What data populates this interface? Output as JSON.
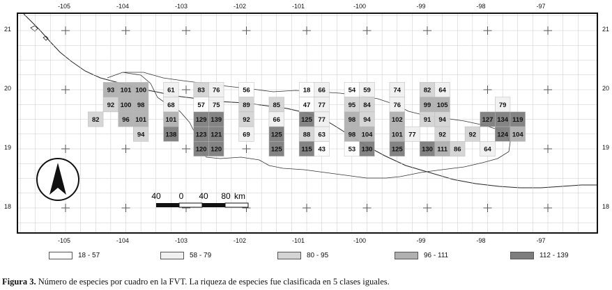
{
  "longitude_labels": [
    "-105",
    "-104",
    "-103",
    "-102",
    "-101",
    "-100",
    "-99",
    "-98",
    "-97"
  ],
  "latitude_labels": [
    "21",
    "20",
    "19",
    "18"
  ],
  "scale_bar": {
    "labels": [
      "40",
      "0",
      "40",
      "80"
    ],
    "unit": "km"
  },
  "north_arrow_icon": "north-arrow-icon",
  "class_colors": [
    "#ffffff",
    "#f0f0f0",
    "#d4d4d4",
    "#b0b0b0",
    "#7d7d7d"
  ],
  "legend": [
    {
      "label": "18 - 57",
      "color": "#ffffff"
    },
    {
      "label": "58 - 79",
      "color": "#f0f0f0"
    },
    {
      "label": "80 - 95",
      "color": "#d4d4d4"
    },
    {
      "label": "96 - 111",
      "color": "#b0b0b0"
    },
    {
      "label": "112 - 139",
      "color": "#7d7d7d"
    }
  ],
  "caption": {
    "label": "Figura 3.",
    "text": " Número de especies por cuadro en la FVT. La riqueza de especies fue clasificada en 5 clases iguales."
  },
  "cells": [
    {
      "lon": -104.25,
      "lat": 20.0,
      "value": 93,
      "cls": 3
    },
    {
      "lon": -104.0,
      "lat": 20.0,
      "value": 101,
      "cls": 3
    },
    {
      "lon": -103.75,
      "lat": 20.0,
      "value": 100,
      "cls": 3
    },
    {
      "lon": -103.25,
      "lat": 20.0,
      "value": 61,
      "cls": 1
    },
    {
      "lon": -102.75,
      "lat": 20.0,
      "value": 83,
      "cls": 2
    },
    {
      "lon": -102.5,
      "lat": 20.0,
      "value": 76,
      "cls": 1
    },
    {
      "lon": -102.0,
      "lat": 20.0,
      "value": 56,
      "cls": 0
    },
    {
      "lon": -101.0,
      "lat": 20.0,
      "value": 18,
      "cls": 0
    },
    {
      "lon": -100.75,
      "lat": 20.0,
      "value": 66,
      "cls": 1
    },
    {
      "lon": -100.25,
      "lat": 20.0,
      "value": 54,
      "cls": 0
    },
    {
      "lon": -100.0,
      "lat": 20.0,
      "value": 59,
      "cls": 1
    },
    {
      "lon": -99.5,
      "lat": 20.0,
      "value": 74,
      "cls": 1
    },
    {
      "lon": -99.0,
      "lat": 20.0,
      "value": 82,
      "cls": 2
    },
    {
      "lon": -98.75,
      "lat": 20.0,
      "value": 64,
      "cls": 1
    },
    {
      "lon": -104.25,
      "lat": 19.75,
      "value": 92,
      "cls": 2
    },
    {
      "lon": -104.0,
      "lat": 19.75,
      "value": 100,
      "cls": 3
    },
    {
      "lon": -103.75,
      "lat": 19.75,
      "value": 98,
      "cls": 3
    },
    {
      "lon": -103.25,
      "lat": 19.75,
      "value": 68,
      "cls": 1
    },
    {
      "lon": -102.75,
      "lat": 19.75,
      "value": 57,
      "cls": 0
    },
    {
      "lon": -102.5,
      "lat": 19.75,
      "value": 75,
      "cls": 1
    },
    {
      "lon": -102.0,
      "lat": 19.75,
      "value": 89,
      "cls": 2
    },
    {
      "lon": -101.5,
      "lat": 19.75,
      "value": 85,
      "cls": 2
    },
    {
      "lon": -101.0,
      "lat": 19.75,
      "value": 47,
      "cls": 0
    },
    {
      "lon": -100.75,
      "lat": 19.75,
      "value": 77,
      "cls": 1
    },
    {
      "lon": -100.25,
      "lat": 19.75,
      "value": 95,
      "cls": 2
    },
    {
      "lon": -100.0,
      "lat": 19.75,
      "value": 84,
      "cls": 2
    },
    {
      "lon": -99.5,
      "lat": 19.75,
      "value": 76,
      "cls": 1
    },
    {
      "lon": -99.0,
      "lat": 19.75,
      "value": 99,
      "cls": 3
    },
    {
      "lon": -98.75,
      "lat": 19.75,
      "value": 105,
      "cls": 3
    },
    {
      "lon": -97.75,
      "lat": 19.75,
      "value": 79,
      "cls": 1
    },
    {
      "lon": -104.5,
      "lat": 19.5,
      "value": 82,
      "cls": 2
    },
    {
      "lon": -104.0,
      "lat": 19.5,
      "value": 96,
      "cls": 3
    },
    {
      "lon": -103.75,
      "lat": 19.5,
      "value": 101,
      "cls": 3
    },
    {
      "lon": -103.25,
      "lat": 19.5,
      "value": 101,
      "cls": 3
    },
    {
      "lon": -102.75,
      "lat": 19.5,
      "value": 129,
      "cls": 4
    },
    {
      "lon": -102.5,
      "lat": 19.5,
      "value": 139,
      "cls": 4
    },
    {
      "lon": -102.0,
      "lat": 19.5,
      "value": 92,
      "cls": 2
    },
    {
      "lon": -101.5,
      "lat": 19.5,
      "value": 66,
      "cls": 1
    },
    {
      "lon": -101.0,
      "lat": 19.5,
      "value": 125,
      "cls": 4
    },
    {
      "lon": -100.75,
      "lat": 19.5,
      "value": 77,
      "cls": 1
    },
    {
      "lon": -100.25,
      "lat": 19.5,
      "value": 98,
      "cls": 3
    },
    {
      "lon": -100.0,
      "lat": 19.5,
      "value": 94,
      "cls": 2
    },
    {
      "lon": -99.5,
      "lat": 19.5,
      "value": 102,
      "cls": 3
    },
    {
      "lon": -99.0,
      "lat": 19.5,
      "value": 91,
      "cls": 2
    },
    {
      "lon": -98.75,
      "lat": 19.5,
      "value": 94,
      "cls": 2
    },
    {
      "lon": -98.0,
      "lat": 19.5,
      "value": 127,
      "cls": 4
    },
    {
      "lon": -97.75,
      "lat": 19.5,
      "value": 134,
      "cls": 4
    },
    {
      "lon": -97.5,
      "lat": 19.5,
      "value": 119,
      "cls": 4
    },
    {
      "lon": -103.75,
      "lat": 19.25,
      "value": 94,
      "cls": 2
    },
    {
      "lon": -103.25,
      "lat": 19.25,
      "value": 138,
      "cls": 4
    },
    {
      "lon": -102.75,
      "lat": 19.25,
      "value": 123,
      "cls": 4
    },
    {
      "lon": -102.5,
      "lat": 19.25,
      "value": 121,
      "cls": 4
    },
    {
      "lon": -102.0,
      "lat": 19.25,
      "value": 69,
      "cls": 1
    },
    {
      "lon": -101.5,
      "lat": 19.25,
      "value": 125,
      "cls": 4
    },
    {
      "lon": -101.0,
      "lat": 19.25,
      "value": 88,
      "cls": 2
    },
    {
      "lon": -100.75,
      "lat": 19.25,
      "value": 63,
      "cls": 1
    },
    {
      "lon": -100.25,
      "lat": 19.25,
      "value": 98,
      "cls": 3
    },
    {
      "lon": -100.0,
      "lat": 19.25,
      "value": 104,
      "cls": 3
    },
    {
      "lon": -99.5,
      "lat": 19.25,
      "value": 101,
      "cls": 3
    },
    {
      "lon": -99.25,
      "lat": 19.25,
      "value": 77,
      "cls": 1
    },
    {
      "lon": -98.75,
      "lat": 19.25,
      "value": 92,
      "cls": 2
    },
    {
      "lon": -98.25,
      "lat": 19.25,
      "value": 92,
      "cls": 2
    },
    {
      "lon": -97.75,
      "lat": 19.25,
      "value": 124,
      "cls": 4
    },
    {
      "lon": -97.5,
      "lat": 19.25,
      "value": 104,
      "cls": 3
    },
    {
      "lon": -102.75,
      "lat": 19.0,
      "value": 120,
      "cls": 4
    },
    {
      "lon": -102.5,
      "lat": 19.0,
      "value": 120,
      "cls": 4
    },
    {
      "lon": -101.5,
      "lat": 19.0,
      "value": 125,
      "cls": 4
    },
    {
      "lon": -101.0,
      "lat": 19.0,
      "value": 115,
      "cls": 4
    },
    {
      "lon": -100.75,
      "lat": 19.0,
      "value": 43,
      "cls": 0
    },
    {
      "lon": -100.25,
      "lat": 19.0,
      "value": 53,
      "cls": 0
    },
    {
      "lon": -100.0,
      "lat": 19.0,
      "value": 130,
      "cls": 4
    },
    {
      "lon": -99.5,
      "lat": 19.0,
      "value": 125,
      "cls": 4
    },
    {
      "lon": -99.0,
      "lat": 19.0,
      "value": 130,
      "cls": 4
    },
    {
      "lon": -98.75,
      "lat": 19.0,
      "value": 111,
      "cls": 3
    },
    {
      "lon": -98.5,
      "lat": 19.0,
      "value": 86,
      "cls": 2
    },
    {
      "lon": -98.0,
      "lat": 19.0,
      "value": 64,
      "cls": 1
    }
  ]
}
